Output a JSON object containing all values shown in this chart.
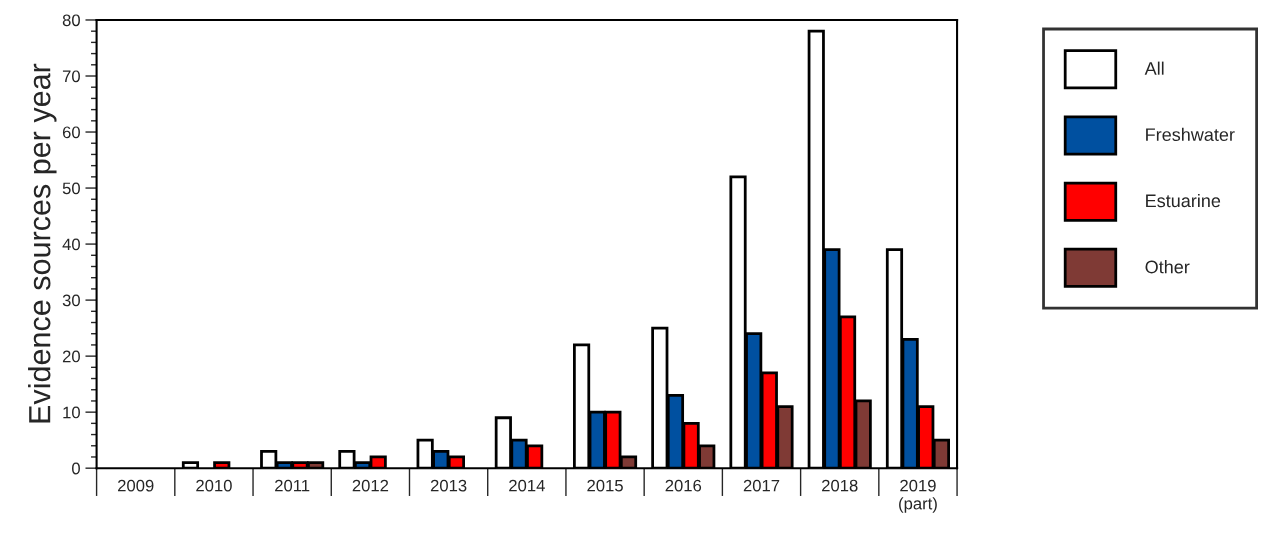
{
  "chart_data": {
    "type": "bar",
    "ylabel": "Evidence sources per year",
    "categories": [
      "2009",
      "2010",
      "2011",
      "2012",
      "2013",
      "2014",
      "2015",
      "2016",
      "2017",
      "2018",
      "2019\n(part)"
    ],
    "series": [
      {
        "name": "All",
        "color": "#ffffff",
        "values": [
          0,
          1,
          3,
          3,
          5,
          9,
          22,
          25,
          52,
          78,
          39
        ]
      },
      {
        "name": "Freshwater",
        "color": "#0050a0",
        "values": [
          0,
          0,
          1,
          1,
          3,
          5,
          10,
          13,
          24,
          39,
          23
        ]
      },
      {
        "name": "Estuarine",
        "color": "#ff0000",
        "values": [
          0,
          1,
          1,
          2,
          2,
          4,
          10,
          8,
          17,
          27,
          11
        ]
      },
      {
        "name": "Other",
        "color": "#7f3a35",
        "values": [
          0,
          0,
          1,
          0,
          0,
          0,
          2,
          4,
          11,
          12,
          5
        ]
      }
    ],
    "ylim": [
      0,
      80
    ],
    "yticks": [
      0,
      {
        "value": 2,
        "label": null
      },
      {
        "value": 4,
        "label": null
      },
      {
        "value": 6,
        "label": null
      },
      {
        "value": 8,
        "label": null
      },
      10,
      {
        "value": 12,
        "label": null
      },
      {
        "value": 14,
        "label": null
      },
      {
        "value": 16,
        "label": null
      },
      {
        "value": 18,
        "label": null
      },
      20,
      {
        "value": 22,
        "label": null
      },
      {
        "value": 24,
        "label": null
      },
      {
        "value": 26,
        "label": null
      },
      {
        "value": 28,
        "label": null
      },
      30,
      {
        "value": 32,
        "label": null
      },
      {
        "value": 34,
        "label": null
      },
      {
        "value": 36,
        "label": null
      },
      {
        "value": 38,
        "label": null
      },
      40,
      {
        "value": 42,
        "label": null
      },
      {
        "value": 44,
        "label": null
      },
      {
        "value": 46,
        "label": null
      },
      {
        "value": 48,
        "label": null
      },
      50,
      {
        "value": 52,
        "label": null
      },
      {
        "value": 54,
        "label": null
      },
      {
        "value": 56,
        "label": null
      },
      {
        "value": 58,
        "label": null
      },
      60,
      {
        "value": 62,
        "label": null
      },
      {
        "value": 64,
        "label": null
      },
      {
        "value": 66,
        "label": null
      },
      {
        "value": 68,
        "label": null
      },
      70,
      {
        "value": 72,
        "label": null
      },
      {
        "value": 74,
        "label": null
      },
      {
        "value": 76,
        "label": null
      },
      {
        "value": 78,
        "label": null
      },
      80
    ],
    "grid": false,
    "legend": "right"
  }
}
